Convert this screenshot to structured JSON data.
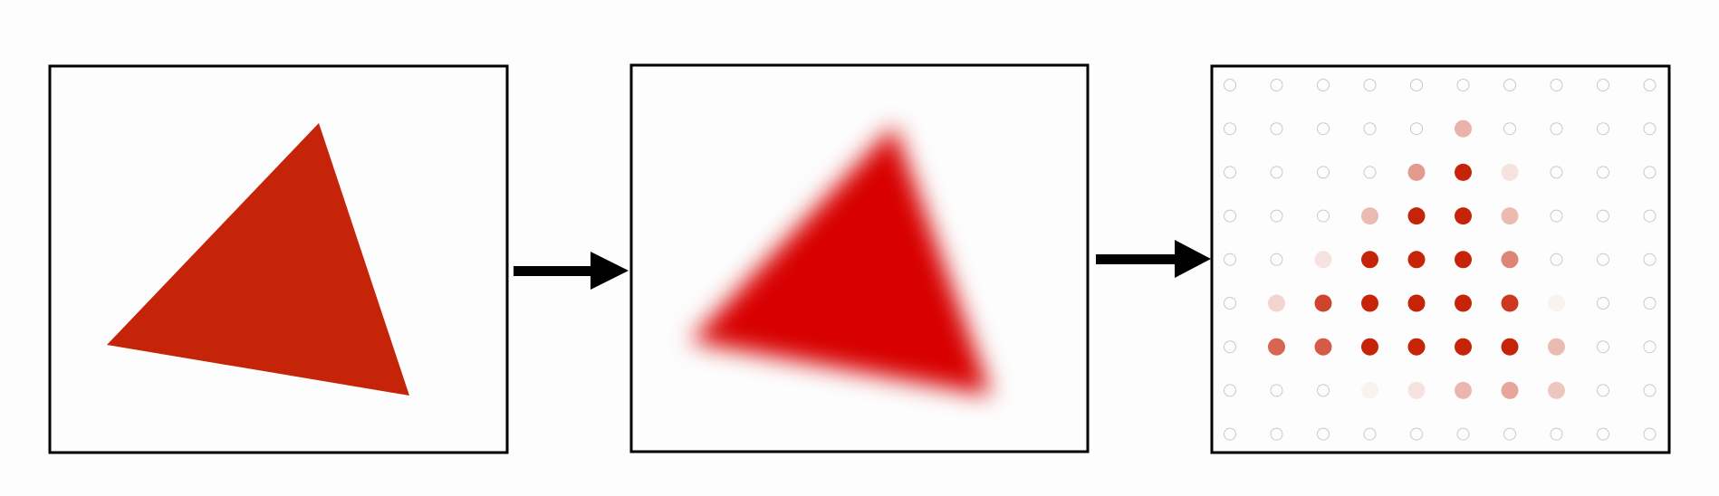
{
  "colors": {
    "background": "#fdfdfd",
    "frame": "#000000",
    "triangle_flat": "#c52408",
    "triangle_blur": "#d80101",
    "sample_dot": "#c52408",
    "empty_dot_stroke": "#c9c9c9",
    "arrow": "#000000"
  },
  "panels": [
    {
      "name": "panel-vector-triangle",
      "content": "sharp-triangle"
    },
    {
      "name": "panel-blurred-triangle",
      "content": "antialiased-triangle"
    },
    {
      "name": "panel-sampled-grid",
      "content": "point-samples"
    }
  ],
  "sampling_grid": {
    "columns": 10,
    "rows": 9,
    "coverage": [
      [
        0,
        0,
        0,
        0,
        0,
        0,
        0,
        0,
        0,
        0
      ],
      [
        0,
        0,
        0,
        0,
        0,
        0.35,
        0,
        0,
        0,
        0
      ],
      [
        0,
        0,
        0,
        0,
        0.45,
        1,
        0.12,
        0,
        0,
        0
      ],
      [
        0,
        0,
        0,
        0.3,
        1,
        1,
        0.3,
        0,
        0,
        0
      ],
      [
        0,
        0,
        0.12,
        1,
        1,
        1,
        0.55,
        0,
        0,
        0
      ],
      [
        0,
        0.18,
        0.85,
        1,
        1,
        1,
        0.9,
        0.05,
        0,
        0
      ],
      [
        0,
        0.7,
        0.75,
        1,
        1,
        1,
        1,
        0.3,
        0,
        0
      ],
      [
        0,
        0,
        0,
        0.05,
        0.12,
        0.32,
        0.4,
        0.25,
        0,
        0
      ],
      [
        0,
        0,
        0,
        0,
        0,
        0,
        0,
        0,
        0,
        0
      ]
    ]
  }
}
